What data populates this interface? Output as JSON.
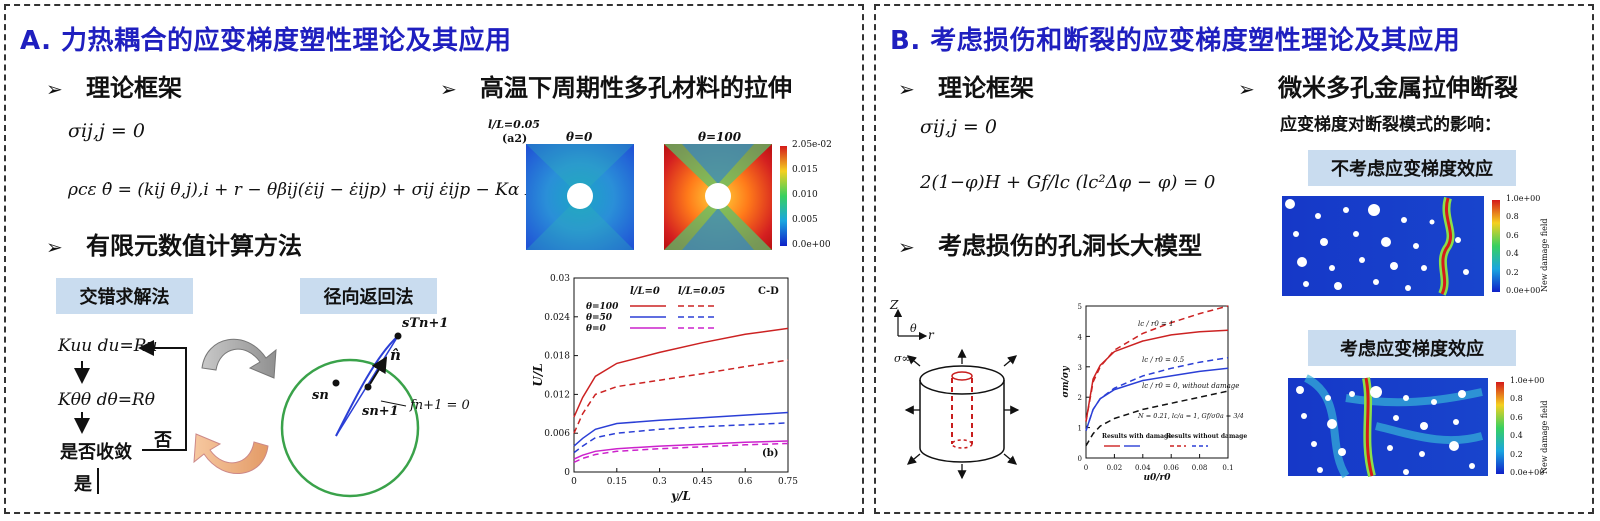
{
  "panel_a": {
    "title": "A. 力热耦合的应变梯度塑性理论及其应用",
    "bullet_theory": "理论框架",
    "bullet_fem": "有限元数值计算方法",
    "bullet_tensile": "高温下周期性多孔材料的拉伸",
    "arrow_glyph": "➢",
    "eq1": "σij,j = 0",
    "eq2": "ρcε θ̇ = (kij θ,j),i + r − θβij(ε̇ij − ε̇ijp) + σij ε̇ijp − Kα κ̇α",
    "staggered_label": "交错求解法",
    "radial_label": "径向返回法",
    "flow": {
      "step1": "Kuu du=Ru",
      "step2": "Kθθ dθ=Rθ",
      "check": "是否收敛",
      "no": "否",
      "yes": "是"
    },
    "radial": {
      "sT": "sTn+1",
      "n_hat": "n̂",
      "sn": "sn",
      "sn1": "sn+1",
      "f": "fn+1 = 0"
    },
    "contour": {
      "case_label": "l/L=0.05",
      "sub_label": "(a2)",
      "left_title": "θ=0",
      "right_title": "θ=100",
      "colorbar_ticks": [
        "2.05e-02",
        "0.015",
        "0.010",
        "0.005",
        "0.0e+00"
      ]
    },
    "chart": {
      "legend_head_1": "l/L=0",
      "legend_head_2": "l/L=0.05",
      "legend_labels": [
        "θ=100",
        "θ=50",
        "θ=0"
      ],
      "corner_label": "C-D",
      "sub_label": "(b)"
    }
  },
  "panel_b": {
    "title": "B. 考虑损伤和断裂的应变梯度塑性理论及其应用",
    "bullet_theory": "理论框架",
    "bullet_void": "考虑损伤的孔洞长大模型",
    "bullet_fracture": "微米多孔金属拉伸断裂",
    "eq1": "σij,j = 0",
    "eq2": "2(1−φ)H + Gf/lc (lc²Δφ − φ) = 0",
    "fracture_subtitle": "应变梯度对断裂模式的影响：",
    "no_gradient_label": "不考虑应变梯度效应",
    "with_gradient_label": "考虑应变梯度效应",
    "damage_bar_title": "New damage field",
    "damage_ticks": [
      "1.0e+00",
      "0.8",
      "0.6",
      "0.4",
      "0.2",
      "0.0e+00"
    ],
    "cylinder": {
      "z": "Z",
      "r": "r",
      "theta": "θ",
      "sigma": "σ∞"
    },
    "void_chart": {
      "lab1": "lc / r0 = 1",
      "lab2": "lc / r0 = 0.5",
      "lab3": "lc / r0 = 0, without damage",
      "params": "N = 0.21, lc/a = 1, Gf/σ0a = 3/4",
      "leg1": "Results with damage",
      "leg2": "Results without damage"
    }
  },
  "chart_data": [
    {
      "type": "line",
      "xlabel": "y/L",
      "ylabel": "U/L",
      "xlim": [
        0,
        0.75
      ],
      "ylim": [
        0,
        0.03
      ],
      "xticks": [
        "0",
        "0.15",
        "0.3",
        "0.45",
        "0.6",
        "0.75"
      ],
      "yticks": [
        "0",
        "0.006",
        "0.012",
        "0.018",
        "0.024",
        "0.03"
      ],
      "x": [
        0,
        0.03,
        0.075,
        0.15,
        0.3,
        0.45,
        0.6,
        0.75
      ],
      "series": [
        {
          "name": "θ=100 (l/L=0)",
          "color": "#cc2222",
          "dash": false,
          "values": [
            0.0085,
            0.0115,
            0.0148,
            0.0168,
            0.0185,
            0.02,
            0.0213,
            0.0222
          ]
        },
        {
          "name": "θ=100 (l/L=0.05)",
          "color": "#cc2222",
          "dash": true,
          "values": [
            0.006,
            0.009,
            0.012,
            0.0132,
            0.0142,
            0.0152,
            0.0163,
            0.0173
          ]
        },
        {
          "name": "θ=50 (l/L=0)",
          "color": "#2b3fd6",
          "dash": false,
          "values": [
            0.004,
            0.0052,
            0.0066,
            0.0075,
            0.008,
            0.0084,
            0.0088,
            0.0092
          ]
        },
        {
          "name": "θ=50 (l/L=0.05)",
          "color": "#2b3fd6",
          "dash": true,
          "values": [
            0.003,
            0.004,
            0.0053,
            0.006,
            0.0066,
            0.007,
            0.0073,
            0.0076
          ]
        },
        {
          "name": "θ=0 (l/L=0)",
          "color": "#cc22cc",
          "dash": false,
          "values": [
            0.002,
            0.0026,
            0.0032,
            0.0036,
            0.004,
            0.0043,
            0.0046,
            0.0048
          ]
        },
        {
          "name": "θ=0 (l/L=0.05)",
          "color": "#cc22cc",
          "dash": true,
          "values": [
            0.0015,
            0.0021,
            0.0027,
            0.0032,
            0.0036,
            0.0039,
            0.0042,
            0.0044
          ]
        }
      ]
    },
    {
      "type": "line",
      "xlabel": "u0/r0",
      "ylabel": "σm/σy",
      "xlim": [
        0,
        0.1
      ],
      "ylim": [
        0,
        5
      ],
      "xticks": [
        "0",
        "0.02",
        "0.04",
        "0.06",
        "0.08",
        "0.1"
      ],
      "yticks": [
        "0",
        "1",
        "2",
        "3",
        "4",
        "5"
      ],
      "x": [
        0,
        0.005,
        0.01,
        0.02,
        0.04,
        0.06,
        0.08,
        0.1
      ],
      "series": [
        {
          "name": "lc/r0=1 with damage",
          "color": "#cc2222",
          "dash": false,
          "values": [
            1.2,
            2.6,
            3.05,
            3.5,
            3.85,
            4.05,
            4.15,
            4.2
          ]
        },
        {
          "name": "lc/r0=1 without damage",
          "color": "#cc2222",
          "dash": true,
          "values": [
            1.2,
            2.5,
            3.0,
            3.55,
            4.1,
            4.45,
            4.75,
            5.0
          ]
        },
        {
          "name": "lc/r0=0.5 with damage",
          "color": "#2b3fd6",
          "dash": false,
          "values": [
            0.9,
            1.6,
            1.95,
            2.25,
            2.55,
            2.7,
            2.85,
            2.95
          ]
        },
        {
          "name": "lc/r0=0.5 without damage",
          "color": "#2b3fd6",
          "dash": true,
          "values": [
            0.9,
            1.6,
            1.95,
            2.3,
            2.7,
            2.95,
            3.15,
            3.3
          ]
        },
        {
          "name": "lc/r0=0 without damage",
          "color": "#111111",
          "dash": true,
          "values": [
            0.4,
            0.8,
            1.05,
            1.3,
            1.6,
            1.8,
            2.0,
            2.2
          ]
        }
      ]
    }
  ]
}
